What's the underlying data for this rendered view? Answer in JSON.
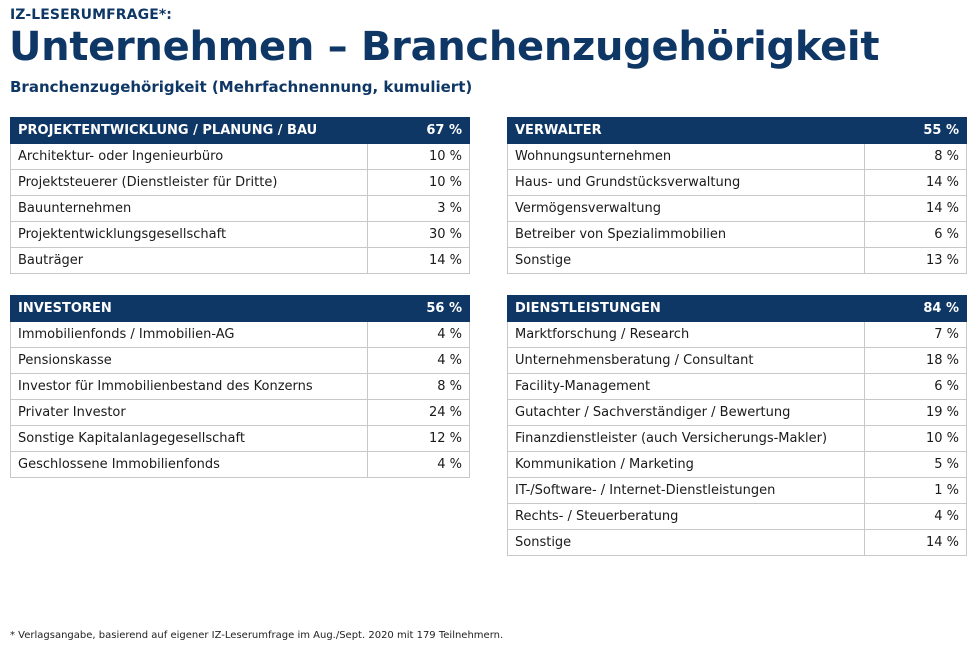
{
  "header": {
    "kicker": "IZ-LESERUMFRAGE*:",
    "title": "Unternehmen – Branchenzugehörigkeit",
    "subtitle": "Branchenzugehörigkeit (Mehrfachnennung, kumuliert)"
  },
  "footnote": "* Verlagsangabe, basierend auf eigener IZ-Leserumfrage im Aug./Sept. 2020 mit 179 Teilnehmern.",
  "colors": {
    "header_bg": "#0f3766",
    "header_text": "#ffffff",
    "title": "#0f3766"
  },
  "chart_data": [
    {
      "type": "table",
      "title": "PROJEKTENTWICKLUNG / PLANUNG / BAU",
      "total": "67 %",
      "rows": [
        {
          "label": "Architektur- oder Ingenieurbüro",
          "value": "10 %"
        },
        {
          "label": "Projektsteuerer (Dienstleister für Dritte)",
          "value": "10 %"
        },
        {
          "label": "Bauunternehmen",
          "value": "3 %"
        },
        {
          "label": "Projektentwicklungsgesellschaft",
          "value": "30 %"
        },
        {
          "label": "Bauträger",
          "value": "14 %"
        }
      ]
    },
    {
      "type": "table",
      "title": "VERWALTER",
      "total": "55 %",
      "rows": [
        {
          "label": "Wohnungsunternehmen",
          "value": "8 %"
        },
        {
          "label": "Haus- und Grundstücksverwaltung",
          "value": "14 %"
        },
        {
          "label": "Vermögensverwaltung",
          "value": "14 %"
        },
        {
          "label": "Betreiber von Spezialimmobilien",
          "value": "6 %"
        },
        {
          "label": "Sonstige",
          "value": "13 %"
        }
      ]
    },
    {
      "type": "table",
      "title": "INVESTOREN",
      "total": "56 %",
      "rows": [
        {
          "label": "Immobilienfonds / Immobilien-AG",
          "value": "4 %"
        },
        {
          "label": "Pensionskasse",
          "value": "4 %"
        },
        {
          "label": "Investor für Immobilienbestand des Konzerns",
          "value": "8 %"
        },
        {
          "label": "Privater Investor",
          "value": "24 %"
        },
        {
          "label": "Sonstige Kapitalanlagegesellschaft",
          "value": "12 %"
        },
        {
          "label": "Geschlossene Immobilienfonds",
          "value": "4 %"
        }
      ]
    },
    {
      "type": "table",
      "title": "DIENSTLEISTUNGEN",
      "total": "84 %",
      "rows": [
        {
          "label": "Marktforschung / Research",
          "value": "7 %"
        },
        {
          "label": "Unternehmensberatung / Consultant",
          "value": "18 %"
        },
        {
          "label": "Facility-Management",
          "value": "6 %"
        },
        {
          "label": "Gutachter / Sachverständiger / Bewertung",
          "value": "19 %"
        },
        {
          "label": "Finanzdienstleister (auch Versicherungs-Makler)",
          "value": "10 %"
        },
        {
          "label": "Kommunikation / Marketing",
          "value": "5 %"
        },
        {
          "label": "IT-/Software- / Internet-Dienstleistungen",
          "value": "1 %"
        },
        {
          "label": "Rechts- / Steuerberatung",
          "value": "4 %"
        },
        {
          "label": "Sonstige",
          "value": "14 %"
        }
      ]
    }
  ]
}
